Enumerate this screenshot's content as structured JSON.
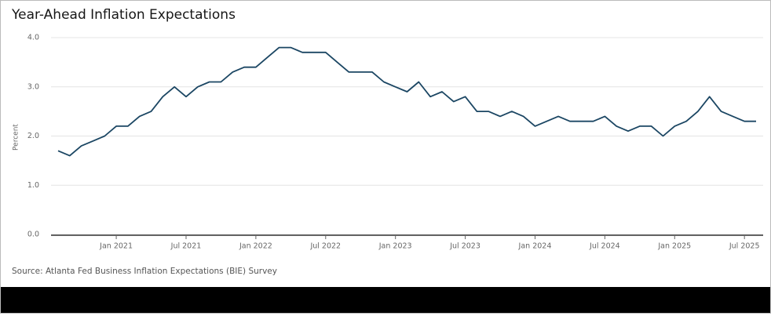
{
  "chart_data": {
    "type": "line",
    "title": "Year-Ahead Inflation Expectations",
    "y_label": "Percent",
    "source": "Source: Atlanta Fed Business Inflation Expectations (BIE) Survey",
    "x": [
      "2020-08",
      "2020-09",
      "2020-10",
      "2020-11",
      "2020-12",
      "2021-01",
      "2021-02",
      "2021-03",
      "2021-04",
      "2021-05",
      "2021-06",
      "2021-07",
      "2021-08",
      "2021-09",
      "2021-10",
      "2021-11",
      "2021-12",
      "2022-01",
      "2022-02",
      "2022-03",
      "2022-04",
      "2022-05",
      "2022-06",
      "2022-07",
      "2022-08",
      "2022-09",
      "2022-10",
      "2022-11",
      "2022-12",
      "2023-01",
      "2023-02",
      "2023-03",
      "2023-04",
      "2023-05",
      "2023-06",
      "2023-07",
      "2023-08",
      "2023-09",
      "2023-10",
      "2023-11",
      "2023-12",
      "2024-01",
      "2024-02",
      "2024-03",
      "2024-04",
      "2024-05",
      "2024-06",
      "2024-07",
      "2024-08",
      "2024-09",
      "2024-10",
      "2024-11",
      "2024-12",
      "2025-01",
      "2025-02",
      "2025-03",
      "2025-04",
      "2025-05",
      "2025-06",
      "2025-07",
      "2025-08"
    ],
    "series": [
      {
        "name": "Year-Ahead Inflation Expectations",
        "color": "#1b4663",
        "values": [
          1.7,
          1.6,
          1.8,
          1.9,
          2.0,
          2.2,
          2.2,
          2.4,
          2.5,
          2.8,
          3.0,
          2.8,
          3.0,
          3.1,
          3.1,
          3.3,
          3.4,
          3.4,
          3.6,
          3.8,
          3.8,
          3.7,
          3.7,
          3.7,
          3.5,
          3.3,
          3.3,
          3.3,
          3.1,
          3.0,
          2.9,
          3.1,
          2.8,
          2.9,
          2.7,
          2.8,
          2.5,
          2.5,
          2.4,
          2.5,
          2.4,
          2.2,
          2.3,
          2.4,
          2.3,
          2.3,
          2.3,
          2.4,
          2.2,
          2.1,
          2.2,
          2.2,
          2.0,
          2.2,
          2.3,
          2.5,
          2.8,
          2.5,
          2.4,
          2.3,
          2.3
        ]
      }
    ],
    "xlim": [
      "2020-08",
      "2025-08"
    ],
    "xticks": [
      {
        "value": "2021-01",
        "label": "Jan 2021"
      },
      {
        "value": "2021-07",
        "label": "Jul 2021"
      },
      {
        "value": "2022-01",
        "label": "Jan 2022"
      },
      {
        "value": "2022-07",
        "label": "Jul 2022"
      },
      {
        "value": "2023-01",
        "label": "Jan 2023"
      },
      {
        "value": "2023-07",
        "label": "Jul 2023"
      },
      {
        "value": "2024-01",
        "label": "Jan 2024"
      },
      {
        "value": "2024-07",
        "label": "Jul 2024"
      },
      {
        "value": "2025-01",
        "label": "Jan 2025"
      },
      {
        "value": "2025-07",
        "label": "Jul 2025"
      }
    ],
    "ylim": [
      0,
      4
    ],
    "yticks": [
      {
        "value": 0,
        "label": "0.0"
      },
      {
        "value": 1,
        "label": "1.0"
      },
      {
        "value": 2,
        "label": "2.0"
      },
      {
        "value": 3,
        "label": "3.0"
      },
      {
        "value": 4,
        "label": "4.0"
      }
    ],
    "grid": true
  }
}
